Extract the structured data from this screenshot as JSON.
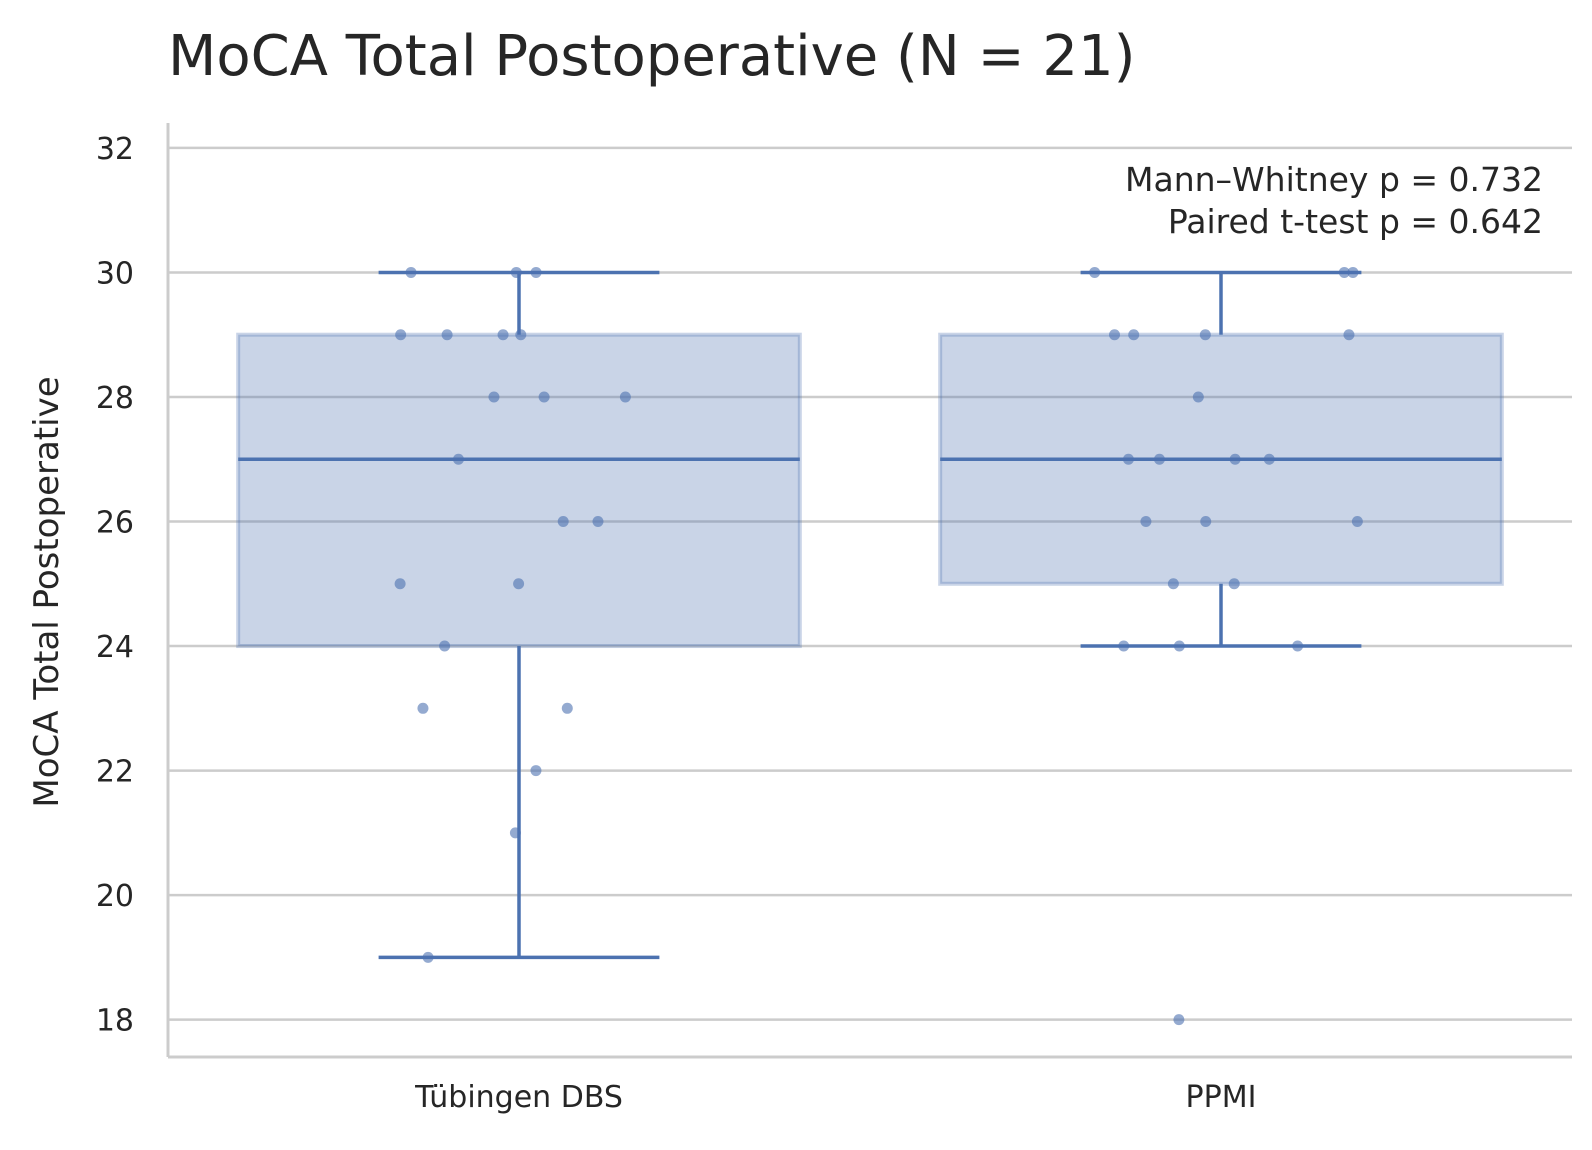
{
  "chart_data": {
    "type": "box",
    "title": "MoCA Total Postoperative (N = 21)",
    "xlabel": "",
    "ylabel": "MoCA Total Postoperative",
    "ylim": [
      17.4,
      32.4
    ],
    "yticks": [
      18,
      20,
      22,
      24,
      26,
      28,
      30,
      32
    ],
    "grid": "y",
    "categories": [
      "Tübingen DBS",
      "PPMI"
    ],
    "boxes": [
      {
        "category": "Tübingen DBS",
        "whislo": 19,
        "q1": 24,
        "median": 27,
        "q3": 29,
        "whishi": 30
      },
      {
        "category": "PPMI",
        "whislo": 24,
        "q1": 25,
        "median": 27,
        "q3": 29,
        "whishi": 30
      }
    ],
    "points": [
      {
        "category": "Tübingen DBS",
        "values": [
          30,
          30,
          30,
          29,
          29,
          29,
          29,
          28,
          28,
          28,
          27,
          26,
          26,
          25,
          25,
          24,
          23,
          23,
          22,
          21,
          19
        ]
      },
      {
        "category": "PPMI",
        "values": [
          30,
          30,
          30,
          29,
          29,
          29,
          29,
          28,
          27,
          27,
          27,
          27,
          26,
          26,
          26,
          25,
          25,
          24,
          24,
          24,
          18
        ]
      }
    ],
    "annotations": [
      "Mann–Whitney p = 0.732",
      "Paired t-test p = 0.642"
    ],
    "colors": {
      "box": "#4c72b0",
      "grid": "#cccccc",
      "text": "#262626"
    }
  }
}
